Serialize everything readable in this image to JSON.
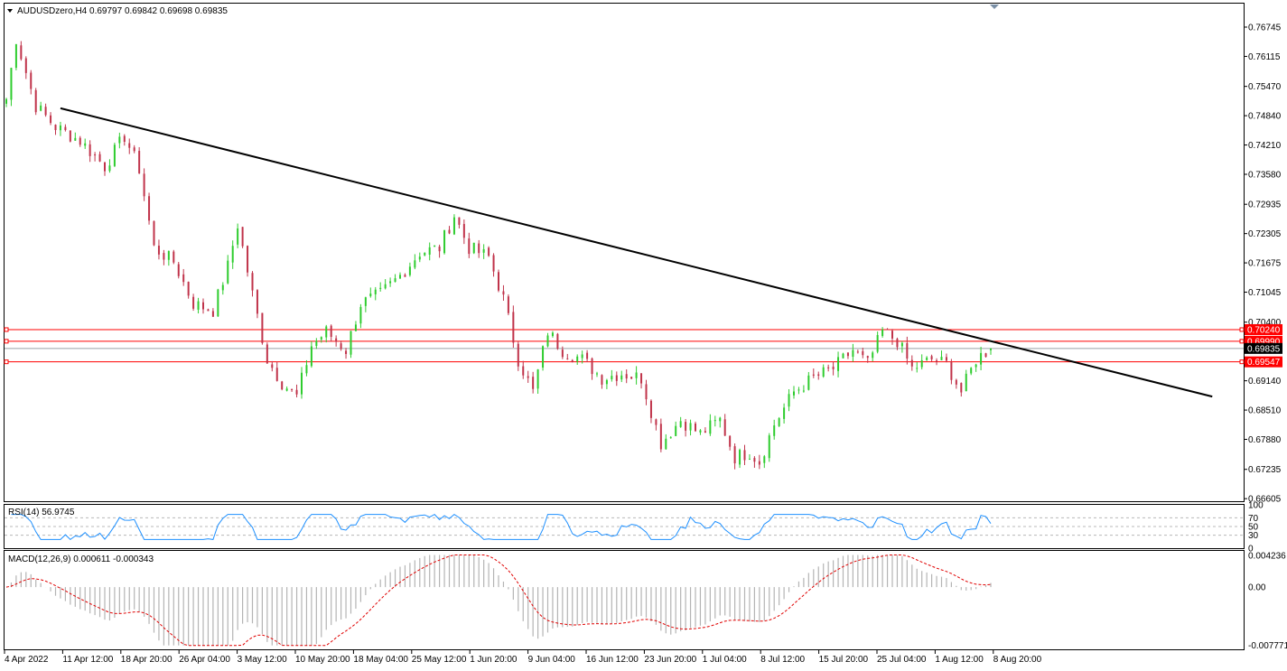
{
  "header": {
    "symbol_line": "AUDUSDzero,H4  0.69797 0.69842 0.69698 0.69835"
  },
  "price_axis": {
    "ticks": [
      "0.76745",
      "0.76115",
      "0.75470",
      "0.74840",
      "0.74210",
      "0.73580",
      "0.72935",
      "0.72305",
      "0.71675",
      "0.71045",
      "0.70400",
      "0.69140",
      "0.68510",
      "0.67880",
      "0.67235",
      "0.66605"
    ],
    "tick_values": [
      0.76745,
      0.76115,
      0.7547,
      0.7484,
      0.7421,
      0.7358,
      0.72935,
      0.72305,
      0.71675,
      0.71045,
      0.704,
      0.6914,
      0.6851,
      0.6788,
      0.67235,
      0.66605
    ],
    "range": [
      0.6655,
      0.7725
    ]
  },
  "price_levels": [
    {
      "label": "0.70240",
      "value": 0.7024,
      "color": "#ff0000"
    },
    {
      "label": "0.69990",
      "value": 0.6999,
      "color": "#ff0000"
    },
    {
      "label": "0.69835",
      "value": 0.69835,
      "color": "#000000"
    },
    {
      "label": "0.69547",
      "value": 0.69547,
      "color": "#ff0000"
    }
  ],
  "time_axis": {
    "labels": [
      "4 Apr 2022",
      "11 Apr 12:00",
      "18 Apr 20:00",
      "26 Apr 04:00",
      "3 May 12:00",
      "10 May 20:00",
      "18 May 04:00",
      "25 May 12:00",
      "1 Jun 20:00",
      "9 Jun 04:00",
      "16 Jun 12:00",
      "23 Jun 20:00",
      "1 Jul 04:00",
      "8 Jul 12:00",
      "15 Jul 20:00",
      "25 Jul 04:00",
      "1 Aug 12:00",
      "8 Aug 20:00"
    ]
  },
  "rsi": {
    "title": "RSI(14) 56.9745",
    "ticks": [
      "100",
      "70",
      "50",
      "30",
      "0"
    ],
    "tick_values": [
      100,
      70,
      50,
      30,
      0
    ]
  },
  "macd": {
    "title": "MACD(12,26,9) 0.000611 -0.000343",
    "ticks": [
      "0.004236",
      "0.00",
      "-0.007771"
    ],
    "tick_values": [
      0.004236,
      0.0,
      -0.007771
    ]
  },
  "colors": {
    "bull": "#2ecc2e",
    "bear": "#c0334a",
    "trendline": "#000000",
    "rsi_line": "#1e90ff",
    "macd_hist": "#b4b4b4",
    "signal": "#e00000",
    "level": "#ff0000"
  },
  "chart_data": {
    "type": "candlestick",
    "symbol": "AUDUSDzero",
    "timeframe": "H4",
    "ohlc_last": {
      "open": 0.69797,
      "high": 0.69842,
      "low": 0.69698,
      "close": 0.69835
    },
    "x": [
      "4 Apr 2022",
      "11 Apr 12:00",
      "18 Apr 20:00",
      "26 Apr 04:00",
      "3 May 12:00",
      "10 May 20:00",
      "18 May 04:00",
      "25 May 12:00",
      "1 Jun 20:00",
      "9 Jun 04:00",
      "16 Jun 12:00",
      "23 Jun 20:00",
      "1 Jul 04:00",
      "8 Jul 12:00",
      "15 Jul 20:00",
      "25 Jul 04:00",
      "1 Aug 12:00",
      "8 Aug 20:00"
    ],
    "close_path": [
      [
        0,
        0.752
      ],
      [
        2,
        0.765
      ],
      [
        6,
        0.7505
      ],
      [
        10,
        0.746
      ],
      [
        15,
        0.743
      ],
      [
        20,
        0.7375
      ],
      [
        24,
        0.744
      ],
      [
        27,
        0.737
      ],
      [
        30,
        0.72
      ],
      [
        34,
        0.717
      ],
      [
        38,
        0.708
      ],
      [
        42,
        0.7065
      ],
      [
        45,
        0.716
      ],
      [
        47,
        0.725
      ],
      [
        50,
        0.71
      ],
      [
        53,
        0.696
      ],
      [
        56,
        0.691
      ],
      [
        59,
        0.688
      ],
      [
        62,
        0.699
      ],
      [
        65,
        0.702
      ],
      [
        69,
        0.698
      ],
      [
        72,
        0.708
      ],
      [
        76,
        0.71
      ],
      [
        80,
        0.714
      ],
      [
        84,
        0.719
      ],
      [
        88,
        0.72
      ],
      [
        91,
        0.727
      ],
      [
        94,
        0.72
      ],
      [
        98,
        0.718
      ],
      [
        101,
        0.709
      ],
      [
        104,
        0.696
      ],
      [
        107,
        0.689
      ],
      [
        110,
        0.702
      ],
      [
        113,
        0.698
      ],
      [
        117,
        0.696
      ],
      [
        121,
        0.692
      ],
      [
        125,
        0.693
      ],
      [
        129,
        0.692
      ],
      [
        133,
        0.678
      ],
      [
        137,
        0.683
      ],
      [
        141,
        0.68
      ],
      [
        145,
        0.683
      ],
      [
        148,
        0.675
      ],
      [
        151,
        0.676
      ],
      [
        153,
        0.674
      ],
      [
        156,
        0.682
      ],
      [
        160,
        0.689
      ],
      [
        164,
        0.692
      ],
      [
        168,
        0.694
      ],
      [
        172,
        0.698
      ],
      [
        175,
        0.695
      ],
      [
        178,
        0.702
      ],
      [
        181,
        0.7
      ],
      [
        184,
        0.694
      ],
      [
        188,
        0.696
      ],
      [
        191,
        0.695
      ],
      [
        194,
        0.689
      ],
      [
        197,
        0.696
      ],
      [
        200,
        0.6984
      ]
    ],
    "trendline": {
      "start": {
        "bar": 11,
        "price": 0.75
      },
      "end": {
        "bar": 245,
        "price": 0.688
      }
    },
    "horizontal_levels": [
      0.7024,
      0.6999,
      0.69547
    ],
    "current_price": 0.69835,
    "ylim": [
      0.6655,
      0.7725
    ]
  }
}
